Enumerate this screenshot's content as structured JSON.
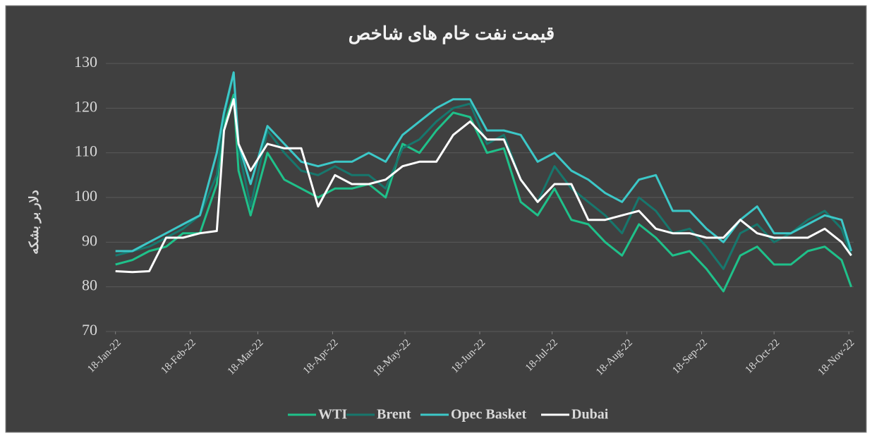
{
  "chart_data": {
    "type": "line",
    "title": "قیمت نفت خام های شاخص",
    "y_label": "دلار بر بشکه",
    "x": [
      "2022-01-18",
      "2022-01-25",
      "2022-02-01",
      "2022-02-08",
      "2022-02-15",
      "2022-02-22",
      "2022-03-01",
      "2022-03-04",
      "2022-03-08",
      "2022-03-10",
      "2022-03-15",
      "2022-03-22",
      "2022-03-29",
      "2022-04-05",
      "2022-04-12",
      "2022-04-19",
      "2022-04-26",
      "2022-05-03",
      "2022-05-10",
      "2022-05-17",
      "2022-05-24",
      "2022-05-31",
      "2022-06-07",
      "2022-06-14",
      "2022-06-21",
      "2022-06-28",
      "2022-07-05",
      "2022-07-12",
      "2022-07-19",
      "2022-07-26",
      "2022-08-02",
      "2022-08-09",
      "2022-08-16",
      "2022-08-23",
      "2022-08-30",
      "2022-09-06",
      "2022-09-13",
      "2022-09-20",
      "2022-09-27",
      "2022-10-04",
      "2022-10-11",
      "2022-10-18",
      "2022-10-25",
      "2022-11-01",
      "2022-11-08",
      "2022-11-15",
      "2022-11-19"
    ],
    "series": [
      {
        "name": "WTI",
        "color": "#1fc18a",
        "values": [
          85,
          86,
          88,
          89,
          92,
          92,
          103,
          116,
          123,
          106,
          96,
          110,
          104,
          102,
          100,
          102,
          102,
          103,
          100,
          112,
          110,
          115,
          119,
          118,
          110,
          111,
          99,
          96,
          102,
          95,
          94,
          90,
          87,
          94,
          91,
          87,
          88,
          84,
          79,
          87,
          89,
          85,
          85,
          88,
          89,
          86,
          80
        ]
      },
      {
        "name": "Brent",
        "color": "#17776d",
        "values": [
          87,
          88,
          89,
          91,
          93,
          96,
          105,
          118,
          128,
          111,
          98,
          115,
          110,
          106,
          105,
          107,
          105,
          105,
          102,
          111,
          113,
          117,
          120,
          121,
          112,
          114,
          104,
          99,
          107,
          102,
          99,
          96,
          92,
          100,
          97,
          92,
          93,
          89,
          84,
          92,
          94,
          90,
          92,
          95,
          97,
          93,
          87
        ]
      },
      {
        "name": "Opec Basket",
        "color": "#3cc8c8",
        "values": [
          88,
          88,
          90,
          92,
          94,
          96,
          110,
          119,
          128,
          112,
          103,
          116,
          112,
          108,
          107,
          108,
          108,
          110,
          108,
          114,
          117,
          120,
          122,
          122,
          115,
          115,
          114,
          108,
          110,
          106,
          104,
          101,
          99,
          104,
          105,
          97,
          97,
          93,
          90,
          95,
          98,
          92,
          92,
          94,
          96,
          95,
          88
        ]
      },
      {
        "name": "Dubai",
        "color": "#ffffff",
        "values": [
          83.5,
          83.3,
          83.5,
          91,
          91,
          92,
          92.5,
          115,
          122,
          112,
          106,
          112,
          111,
          111,
          98,
          105,
          103,
          103,
          104,
          107,
          108,
          108,
          114,
          117,
          113,
          113,
          104,
          99,
          103,
          103,
          95,
          95,
          96,
          97,
          93,
          92,
          92,
          91,
          91,
          95,
          92,
          91,
          91,
          91,
          93,
          90,
          87
        ]
      }
    ],
    "xlim": [
      "2022-01-14",
      "2022-11-20"
    ],
    "xticks": [
      {
        "value": "2022-01-18",
        "label": "18-Jan-22"
      },
      {
        "value": "2022-02-18",
        "label": "18-Feb-22"
      },
      {
        "value": "2022-03-18",
        "label": "18-Mar-22"
      },
      {
        "value": "2022-04-18",
        "label": "18-Apr-22"
      },
      {
        "value": "2022-05-18",
        "label": "18-May-22"
      },
      {
        "value": "2022-06-18",
        "label": "18-Jun-22"
      },
      {
        "value": "2022-07-18",
        "label": "18-Jul-22"
      },
      {
        "value": "2022-08-18",
        "label": "18-Aug-22"
      },
      {
        "value": "2022-09-18",
        "label": "18-Sep-22"
      },
      {
        "value": "2022-10-18",
        "label": "18-Oct-22"
      },
      {
        "value": "2022-11-18",
        "label": "18-Nov-22"
      }
    ],
    "ylim": [
      70,
      130
    ],
    "yticks": [
      70,
      80,
      90,
      100,
      110,
      120,
      130
    ],
    "grid": true
  }
}
